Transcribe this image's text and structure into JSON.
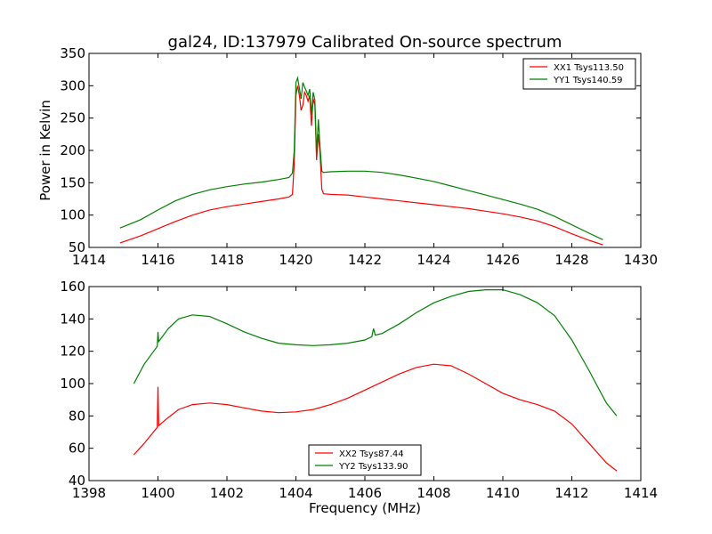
{
  "figure": {
    "title": "gal24, ID:137979 Calibrated On-source spectrum",
    "xlabel": "Frequency (MHz)"
  },
  "chart_data": [
    {
      "type": "line",
      "title": "gal24, ID:137979 Calibrated On-source spectrum",
      "xlabel": "",
      "ylabel": "Power in Kelvin",
      "xlim": [
        1414,
        1430
      ],
      "ylim": [
        50,
        350
      ],
      "xticks": [
        "1414",
        "1416",
        "1418",
        "1420",
        "1422",
        "1424",
        "1426",
        "1428",
        "1430"
      ],
      "yticks": [
        "50",
        "100",
        "150",
        "200",
        "250",
        "300",
        "350"
      ],
      "legend": "top-right",
      "series": [
        {
          "name": "XX1 Tsys113.50",
          "color": "#ff0000",
          "points": [
            [
              1414.9,
              57
            ],
            [
              1415.5,
              68
            ],
            [
              1416.0,
              79
            ],
            [
              1416.5,
              90
            ],
            [
              1417.0,
              100
            ],
            [
              1417.5,
              108
            ],
            [
              1418.0,
              113
            ],
            [
              1418.5,
              117
            ],
            [
              1419.0,
              121
            ],
            [
              1419.5,
              125
            ],
            [
              1419.8,
              128
            ],
            [
              1419.9,
              132
            ],
            [
              1419.95,
              180
            ],
            [
              1420.0,
              285
            ],
            [
              1420.05,
              300
            ],
            [
              1420.1,
              285
            ],
            [
              1420.15,
              262
            ],
            [
              1420.2,
              270
            ],
            [
              1420.25,
              290
            ],
            [
              1420.3,
              285
            ],
            [
              1420.35,
              276
            ],
            [
              1420.4,
              285
            ],
            [
              1420.45,
              238
            ],
            [
              1420.5,
              280
            ],
            [
              1420.55,
              270
            ],
            [
              1420.6,
              185
            ],
            [
              1420.65,
              225
            ],
            [
              1420.7,
              195
            ],
            [
              1420.75,
              140
            ],
            [
              1420.8,
              133
            ],
            [
              1421.0,
              132
            ],
            [
              1421.5,
              131
            ],
            [
              1422.0,
              128
            ],
            [
              1422.5,
              125
            ],
            [
              1423.0,
              122
            ],
            [
              1423.5,
              119
            ],
            [
              1424.0,
              116
            ],
            [
              1424.5,
              113
            ],
            [
              1425.0,
              110
            ],
            [
              1425.5,
              106
            ],
            [
              1426.0,
              102
            ],
            [
              1426.5,
              97
            ],
            [
              1427.0,
              91
            ],
            [
              1427.5,
              82
            ],
            [
              1428.0,
              71
            ],
            [
              1428.5,
              61
            ],
            [
              1428.9,
              54
            ]
          ]
        },
        {
          "name": "YY1 Tsys140.59",
          "color": "#008000",
          "points": [
            [
              1414.9,
              80
            ],
            [
              1415.5,
              93
            ],
            [
              1416.0,
              108
            ],
            [
              1416.5,
              122
            ],
            [
              1417.0,
              132
            ],
            [
              1417.5,
              139
            ],
            [
              1418.0,
              144
            ],
            [
              1418.5,
              148
            ],
            [
              1419.0,
              151
            ],
            [
              1419.5,
              155
            ],
            [
              1419.8,
              158
            ],
            [
              1419.9,
              165
            ],
            [
              1419.95,
              200
            ],
            [
              1420.0,
              305
            ],
            [
              1420.05,
              312
            ],
            [
              1420.1,
              296
            ],
            [
              1420.15,
              280
            ],
            [
              1420.2,
              305
            ],
            [
              1420.25,
              298
            ],
            [
              1420.3,
              292
            ],
            [
              1420.35,
              285
            ],
            [
              1420.4,
              295
            ],
            [
              1420.45,
              255
            ],
            [
              1420.5,
              290
            ],
            [
              1420.55,
              278
            ],
            [
              1420.6,
              195
            ],
            [
              1420.65,
              248
            ],
            [
              1420.7,
              205
            ],
            [
              1420.75,
              168
            ],
            [
              1420.8,
              166
            ],
            [
              1421.0,
              167
            ],
            [
              1421.5,
              168
            ],
            [
              1422.0,
              168
            ],
            [
              1422.5,
              166
            ],
            [
              1423.0,
              162
            ],
            [
              1423.5,
              157
            ],
            [
              1424.0,
              152
            ],
            [
              1424.5,
              145
            ],
            [
              1425.0,
              138
            ],
            [
              1425.5,
              131
            ],
            [
              1426.0,
              124
            ],
            [
              1426.5,
              117
            ],
            [
              1427.0,
              109
            ],
            [
              1427.5,
              98
            ],
            [
              1428.0,
              85
            ],
            [
              1428.5,
              72
            ],
            [
              1428.9,
              62
            ]
          ]
        }
      ]
    },
    {
      "type": "line",
      "title": "",
      "xlabel": "Frequency (MHz)",
      "ylabel": "",
      "xlim": [
        1398,
        1414
      ],
      "ylim": [
        40,
        160
      ],
      "xticks": [
        "1398",
        "1400",
        "1402",
        "1404",
        "1406",
        "1408",
        "1410",
        "1412",
        "1414"
      ],
      "yticks": [
        "40",
        "60",
        "80",
        "100",
        "120",
        "140",
        "160"
      ],
      "legend": "bottom-center",
      "series": [
        {
          "name": "XX2 Tsys87.44",
          "color": "#ff0000",
          "points": [
            [
              1399.3,
              56
            ],
            [
              1399.6,
              63
            ],
            [
              1399.98,
              73
            ],
            [
              1400.0,
              98
            ],
            [
              1400.02,
              74
            ],
            [
              1400.3,
              79
            ],
            [
              1400.6,
              84
            ],
            [
              1401.0,
              87
            ],
            [
              1401.5,
              88
            ],
            [
              1402.0,
              87
            ],
            [
              1402.5,
              85
            ],
            [
              1403.0,
              83
            ],
            [
              1403.5,
              82
            ],
            [
              1404.0,
              82.5
            ],
            [
              1404.5,
              84
            ],
            [
              1405.0,
              87
            ],
            [
              1405.5,
              91
            ],
            [
              1406.0,
              96
            ],
            [
              1406.5,
              101
            ],
            [
              1407.0,
              106
            ],
            [
              1407.5,
              110
            ],
            [
              1408.0,
              112
            ],
            [
              1408.5,
              111
            ],
            [
              1409.0,
              106
            ],
            [
              1409.5,
              100
            ],
            [
              1410.0,
              94
            ],
            [
              1410.5,
              90
            ],
            [
              1411.0,
              87
            ],
            [
              1411.5,
              83
            ],
            [
              1412.0,
              75
            ],
            [
              1412.5,
              63
            ],
            [
              1413.0,
              51
            ],
            [
              1413.3,
              46
            ]
          ]
        },
        {
          "name": "YY2 Tsys133.90",
          "color": "#008000",
          "points": [
            [
              1399.3,
              100
            ],
            [
              1399.6,
              112
            ],
            [
              1399.98,
              123
            ],
            [
              1400.0,
              132
            ],
            [
              1400.02,
              126
            ],
            [
              1400.3,
              134
            ],
            [
              1400.6,
              140
            ],
            [
              1401.0,
              142.5
            ],
            [
              1401.5,
              141.5
            ],
            [
              1402.0,
              137
            ],
            [
              1402.5,
              132
            ],
            [
              1403.0,
              128
            ],
            [
              1403.5,
              125
            ],
            [
              1404.0,
              124
            ],
            [
              1404.5,
              123.5
            ],
            [
              1405.0,
              124
            ],
            [
              1405.5,
              125
            ],
            [
              1406.0,
              127
            ],
            [
              1406.2,
              129
            ],
            [
              1406.25,
              134
            ],
            [
              1406.3,
              130
            ],
            [
              1406.5,
              131
            ],
            [
              1407.0,
              137
            ],
            [
              1407.5,
              144
            ],
            [
              1408.0,
              150
            ],
            [
              1408.5,
              154
            ],
            [
              1409.0,
              157
            ],
            [
              1409.5,
              158
            ],
            [
              1410.0,
              158
            ],
            [
              1410.5,
              155
            ],
            [
              1411.0,
              150
            ],
            [
              1411.5,
              142
            ],
            [
              1412.0,
              127
            ],
            [
              1412.5,
              108
            ],
            [
              1413.0,
              88
            ],
            [
              1413.3,
              80
            ]
          ]
        }
      ]
    }
  ]
}
